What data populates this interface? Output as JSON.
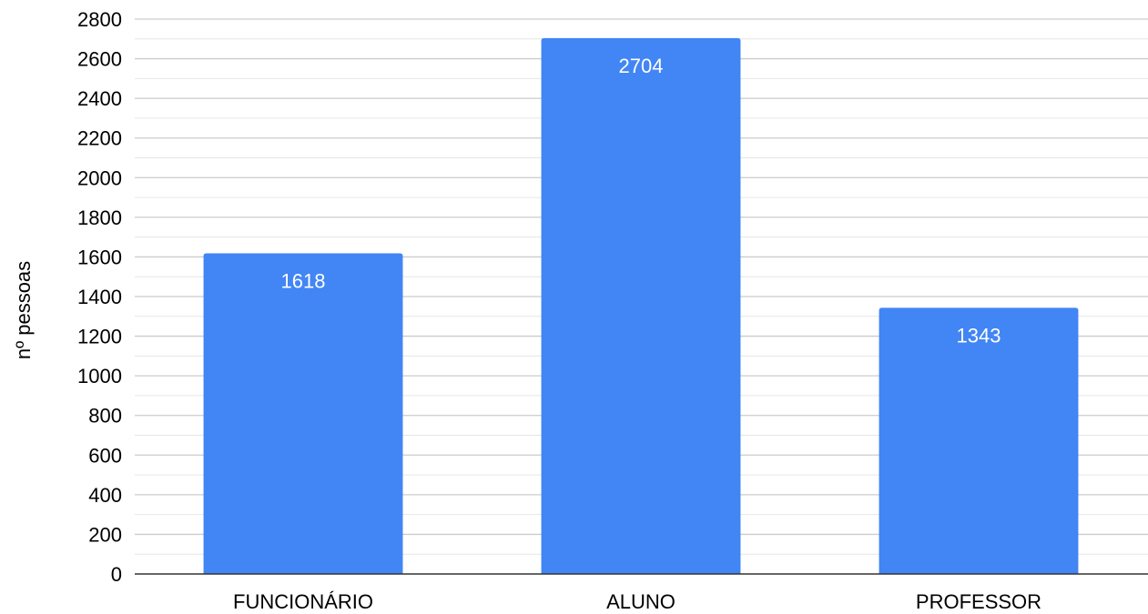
{
  "chart_data": {
    "type": "bar",
    "categories": [
      "FUNCIONÁRIO",
      "ALUNO",
      "PROFESSOR"
    ],
    "values": [
      1618,
      2704,
      1343
    ],
    "data_labels": [
      "1618",
      "2704",
      "1343"
    ],
    "ylabel": "nº pessoas",
    "xlabel": "",
    "ylim": [
      0,
      2800
    ],
    "y_ticks": [
      0,
      200,
      400,
      600,
      800,
      1000,
      1200,
      1400,
      1600,
      1800,
      2000,
      2200,
      2400,
      2600,
      2800
    ],
    "grid": true,
    "minor_grid": true,
    "legend": "none",
    "bar_color": "#4285f4",
    "major_grid_color": "#cccccc",
    "minor_grid_color": "#e6e6e6",
    "axis_color": "#333333"
  }
}
